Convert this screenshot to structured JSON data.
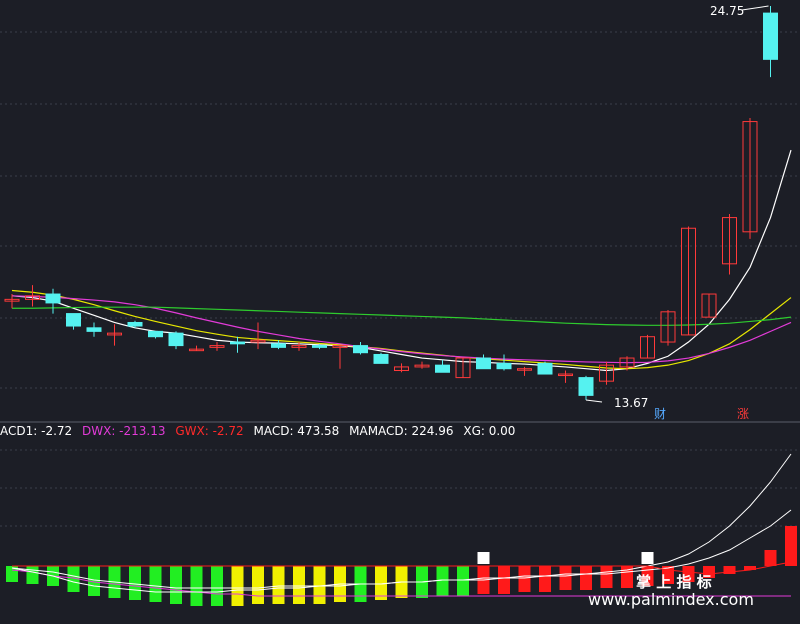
{
  "colors": {
    "background": "#1c1e26",
    "up": "#ff3a3a",
    "down": "#55f2f0",
    "grid": "#3a3d4a",
    "ma_white": "#ffffff",
    "ma_yellow": "#e8e800",
    "ma_magenta": "#e23bd8",
    "ma_green": "#2ecc2e",
    "macd_green": "#22ee22",
    "macd_yellow": "#f0f000",
    "macd_red": "#ff1a1a",
    "macd_white": "#ffffff"
  },
  "labels": {
    "price_high": "24.75",
    "price_low": "13.67",
    "marker_cai": "财",
    "marker_zhang": "涨",
    "indicator_line": {
      "macd1": "ACD1: -2.72",
      "dwx": "DWX: -213.13",
      "gwx": "GWX: -2.72",
      "macd": "MACD: 473.58",
      "mamacd": "MAMACD: 224.96",
      "xg": "XG: 0.00"
    },
    "watermark_cn": "掌 上 指 标",
    "watermark_url": "www.palmindex.com"
  },
  "chart_data": [
    {
      "type": "candlestick",
      "panel": "price",
      "annotations": {
        "high": 24.75,
        "low": 13.67
      },
      "candles": [
        {
          "o": 16.45,
          "h": 16.65,
          "l": 16.25,
          "c": 16.5
        },
        {
          "o": 16.5,
          "h": 16.9,
          "l": 16.3,
          "c": 16.6
        },
        {
          "o": 16.65,
          "h": 16.8,
          "l": 16.1,
          "c": 16.4
        },
        {
          "o": 16.1,
          "h": 16.1,
          "l": 15.65,
          "c": 15.75
        },
        {
          "o": 15.7,
          "h": 15.85,
          "l": 15.45,
          "c": 15.6
        },
        {
          "o": 15.5,
          "h": 15.8,
          "l": 15.2,
          "c": 15.55
        },
        {
          "o": 15.85,
          "h": 15.9,
          "l": 15.7,
          "c": 15.75
        },
        {
          "o": 15.6,
          "h": 15.6,
          "l": 15.4,
          "c": 15.45
        },
        {
          "o": 15.55,
          "h": 15.6,
          "l": 15.1,
          "c": 15.2
        },
        {
          "o": 15.1,
          "h": 15.2,
          "l": 15.05,
          "c": 15.1
        },
        {
          "o": 15.15,
          "h": 15.3,
          "l": 15.05,
          "c": 15.2
        },
        {
          "o": 15.3,
          "h": 15.45,
          "l": 15.0,
          "c": 15.25
        },
        {
          "o": 15.3,
          "h": 15.85,
          "l": 15.1,
          "c": 15.35
        },
        {
          "o": 15.25,
          "h": 15.35,
          "l": 15.1,
          "c": 15.15
        },
        {
          "o": 15.15,
          "h": 15.3,
          "l": 15.05,
          "c": 15.2
        },
        {
          "o": 15.2,
          "h": 15.25,
          "l": 15.1,
          "c": 15.15
        },
        {
          "o": 15.15,
          "h": 15.2,
          "l": 14.55,
          "c": 15.2
        },
        {
          "o": 15.2,
          "h": 15.3,
          "l": 14.95,
          "c": 15.0
        },
        {
          "o": 14.95,
          "h": 15.0,
          "l": 14.7,
          "c": 14.7
        },
        {
          "o": 14.5,
          "h": 14.7,
          "l": 14.45,
          "c": 14.6
        },
        {
          "o": 14.6,
          "h": 14.75,
          "l": 14.55,
          "c": 14.65
        },
        {
          "o": 14.65,
          "h": 14.8,
          "l": 14.5,
          "c": 14.45
        },
        {
          "o": 14.3,
          "h": 14.85,
          "l": 14.3,
          "c": 14.85
        },
        {
          "o": 14.85,
          "h": 14.95,
          "l": 14.55,
          "c": 14.55
        },
        {
          "o": 14.7,
          "h": 14.95,
          "l": 14.5,
          "c": 14.55
        },
        {
          "o": 14.55,
          "h": 14.6,
          "l": 14.35,
          "c": 14.55
        },
        {
          "o": 14.7,
          "h": 14.75,
          "l": 14.4,
          "c": 14.4
        },
        {
          "o": 14.4,
          "h": 14.5,
          "l": 14.15,
          "c": 14.4
        },
        {
          "o": 14.3,
          "h": 14.35,
          "l": 13.67,
          "c": 13.8
        },
        {
          "o": 14.2,
          "h": 14.75,
          "l": 14.1,
          "c": 14.65
        },
        {
          "o": 14.6,
          "h": 14.9,
          "l": 14.5,
          "c": 14.85
        },
        {
          "o": 14.85,
          "h": 15.5,
          "l": 14.85,
          "c": 15.45
        },
        {
          "o": 15.3,
          "h": 16.2,
          "l": 15.2,
          "c": 16.15
        },
        {
          "o": 15.5,
          "h": 18.55,
          "l": 15.5,
          "c": 18.5
        },
        {
          "o": 16.0,
          "h": 16.65,
          "l": 16.0,
          "c": 16.65
        },
        {
          "o": 17.5,
          "h": 18.9,
          "l": 17.2,
          "c": 18.8
        },
        {
          "o": 18.4,
          "h": 21.6,
          "l": 18.2,
          "c": 21.5
        },
        {
          "o": 24.55,
          "h": 24.75,
          "l": 22.75,
          "c": 23.25
        }
      ],
      "moving_averages": [
        {
          "color_key": "ma_white",
          "values": [
            16.6,
            16.55,
            16.45,
            16.25,
            16.05,
            15.85,
            15.7,
            15.6,
            15.55,
            15.45,
            15.35,
            15.3,
            15.28,
            15.27,
            15.25,
            15.22,
            15.2,
            15.15,
            15.05,
            14.95,
            14.85,
            14.8,
            14.75,
            14.73,
            14.7,
            14.68,
            14.64,
            14.6,
            14.55,
            14.5,
            14.55,
            14.7,
            14.9,
            15.3,
            15.8,
            16.5,
            17.4,
            18.8,
            20.7
          ]
        },
        {
          "color_key": "ma_yellow",
          "values": [
            16.75,
            16.7,
            16.62,
            16.5,
            16.35,
            16.18,
            16.02,
            15.88,
            15.75,
            15.62,
            15.52,
            15.43,
            15.38,
            15.34,
            15.3,
            15.26,
            15.22,
            15.17,
            15.12,
            15.05,
            14.99,
            14.93,
            14.87,
            14.83,
            14.79,
            14.75,
            14.71,
            14.67,
            14.62,
            14.57,
            14.55,
            14.58,
            14.65,
            14.78,
            14.98,
            15.25,
            15.65,
            16.1,
            16.55
          ]
        },
        {
          "color_key": "ma_magenta",
          "values": [
            16.6,
            16.58,
            16.56,
            16.52,
            16.48,
            16.43,
            16.35,
            16.25,
            16.12,
            15.98,
            15.85,
            15.72,
            15.6,
            15.5,
            15.4,
            15.32,
            15.25,
            15.17,
            15.1,
            15.03,
            14.97,
            14.92,
            14.88,
            14.85,
            14.82,
            14.8,
            14.78,
            14.76,
            14.74,
            14.73,
            14.72,
            14.73,
            14.77,
            14.85,
            14.98,
            15.15,
            15.35,
            15.6,
            15.85
          ]
        },
        {
          "color_key": "ma_green",
          "values": [
            16.25,
            16.25,
            16.26,
            16.27,
            16.28,
            16.28,
            16.28,
            16.28,
            16.26,
            16.24,
            16.22,
            16.2,
            16.18,
            16.16,
            16.14,
            16.12,
            16.1,
            16.08,
            16.06,
            16.04,
            16.02,
            16.0,
            15.98,
            15.95,
            15.92,
            15.89,
            15.86,
            15.83,
            15.81,
            15.79,
            15.78,
            15.77,
            15.77,
            15.78,
            15.8,
            15.83,
            15.88,
            15.93,
            16.0
          ]
        }
      ],
      "markers": [
        {
          "index": 32,
          "label": "财",
          "color_key": "down"
        },
        {
          "index": 36,
          "label": "涨",
          "color_key": "up"
        }
      ]
    },
    {
      "type": "bar",
      "panel": "indicator",
      "zero_line": 0,
      "bar_values": [
        -0.8,
        -0.9,
        -1.0,
        -1.3,
        -1.5,
        -1.6,
        -1.7,
        -1.8,
        -1.9,
        -2.0,
        -2.0,
        -2.0,
        -1.9,
        -1.9,
        -1.9,
        -1.9,
        -1.8,
        -1.8,
        -1.7,
        -1.6,
        -1.6,
        -1.5,
        -1.5,
        -1.4,
        -1.4,
        -1.3,
        -1.3,
        -1.2,
        -1.2,
        -1.1,
        -1.1,
        -1.0,
        -0.9,
        -0.8,
        -0.6,
        -0.4,
        -0.2,
        0.8,
        2.0
      ],
      "bar_colors": [
        "green",
        "green",
        "green",
        "green",
        "green",
        "green",
        "green",
        "green",
        "green",
        "green",
        "green",
        "yellow",
        "yellow",
        "yellow",
        "yellow",
        "yellow",
        "yellow",
        "green",
        "yellow",
        "yellow",
        "green",
        "green",
        "green",
        "red",
        "red",
        "red",
        "red",
        "red",
        "red",
        "red",
        "red",
        "red",
        "red",
        "red",
        "red",
        "red",
        "red",
        "red",
        "red"
      ],
      "white_tops": [
        23,
        31
      ],
      "lines": [
        {
          "name": "DWX",
          "color_key": "ma_magenta",
          "values": [
            -0.2,
            -0.3,
            -0.5,
            -0.6,
            -0.8,
            -0.9,
            -1.0,
            -1.1,
            -1.2,
            -1.3,
            -1.4,
            -1.4,
            -1.5,
            -1.5,
            -1.5,
            -1.5,
            -1.5,
            -1.5,
            -1.5,
            -1.5,
            -1.5,
            -1.5,
            -1.5,
            -1.5,
            -1.5,
            -1.5,
            -1.5,
            -1.5,
            -1.5,
            -1.5,
            -1.5,
            -1.5,
            -1.5,
            -1.5,
            -1.5,
            -1.5,
            -1.5,
            -1.5,
            -1.5
          ]
        },
        {
          "name": "MACD",
          "color_key": "macd_white",
          "values": [
            -0.1,
            -0.3,
            -0.5,
            -0.8,
            -1.0,
            -1.1,
            -1.2,
            -1.3,
            -1.3,
            -1.3,
            -1.3,
            -1.2,
            -1.2,
            -1.1,
            -1.1,
            -1.0,
            -1.0,
            -0.9,
            -0.9,
            -0.8,
            -0.8,
            -0.7,
            -0.7,
            -0.6,
            -0.6,
            -0.5,
            -0.5,
            -0.4,
            -0.4,
            -0.3,
            -0.2,
            0.0,
            0.2,
            0.6,
            1.2,
            2.0,
            3.0,
            4.2,
            5.6
          ]
        },
        {
          "name": "MAMACD",
          "color_key": "macd_white",
          "values": [
            -0.1,
            -0.2,
            -0.3,
            -0.5,
            -0.7,
            -0.8,
            -0.9,
            -1.0,
            -1.1,
            -1.1,
            -1.1,
            -1.1,
            -1.1,
            -1.0,
            -1.0,
            -1.0,
            -0.9,
            -0.9,
            -0.9,
            -0.8,
            -0.8,
            -0.7,
            -0.7,
            -0.7,
            -0.6,
            -0.6,
            -0.5,
            -0.5,
            -0.4,
            -0.4,
            -0.3,
            -0.2,
            -0.1,
            0.1,
            0.4,
            0.8,
            1.4,
            2.0,
            2.8
          ]
        },
        {
          "name": "GWX",
          "color_key": "macd_red",
          "values": [
            0,
            0,
            0,
            0,
            0,
            0,
            0,
            0,
            0,
            0,
            0,
            0,
            0,
            0,
            0,
            0,
            0,
            0,
            0,
            0,
            0,
            0,
            0,
            0,
            0,
            0,
            0,
            0,
            0,
            0,
            0,
            0,
            -0.2,
            -0.3,
            -0.4,
            -0.3,
            -0.2,
            0,
            0.2
          ]
        }
      ]
    }
  ]
}
